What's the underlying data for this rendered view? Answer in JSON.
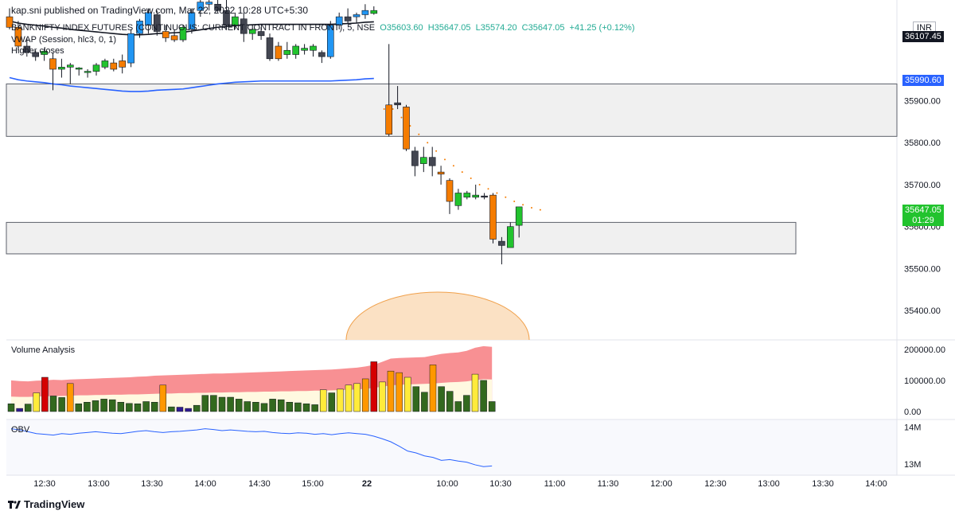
{
  "header": {
    "text": "kap.sni published on TradingView.com, Mar 22, 2022 10:28 UTC+5:30"
  },
  "legend": {
    "symbol": "BANKNIFTY INDEX FUTURES (CONTINUOUS: CURRENT CONTRACT IN FRONT), 5, NSE",
    "open": "O35603.60",
    "high": "H35647.05",
    "low": "L35574.20",
    "close": "C35647.05",
    "change": "+41.25 (+0.12%)",
    "vwap": "VWAP (Session, hlc3, 0, 1)",
    "indicator": "Higher closes"
  },
  "currency": "INR",
  "price_tags": {
    "upper": "36107.45",
    "vwap": "35990.60",
    "last": "35647.05",
    "countdown": "01:29"
  },
  "panes": {
    "volume_title": "Volume Analysis",
    "obv_title": "OBV"
  },
  "footer": {
    "brand": "TradingView"
  },
  "colors": {
    "up_candle": "#22c32e",
    "down_candle": "#f57c00",
    "strong_up": "#2196f3",
    "strong_down": "#434651",
    "vwap": "#2962ff",
    "zone_fill": "#f0f0f0",
    "zone_border": "#5d606b"
  },
  "chart_data": [
    {
      "type": "candlestick",
      "title": "",
      "y_axis_ticks": [
        35400,
        35500,
        35600,
        35700,
        35800,
        35900
      ],
      "ylim": [
        35330,
        36140
      ],
      "x_axis_ticks": [
        "12:30",
        "13:00",
        "13:30",
        "14:00",
        "14:30",
        "15:00",
        "22",
        "10:00",
        "10:30",
        "11:00",
        "11:30",
        "12:00",
        "12:30",
        "13:00",
        "13:30",
        "14:00"
      ],
      "session_break_after_candle": 42,
      "candles": [
        {
          "o": 36100,
          "h": 36120,
          "l": 36070,
          "c": 36075,
          "k": "down"
        },
        {
          "o": 36075,
          "h": 36090,
          "l": 36020,
          "c": 36030,
          "k": "down"
        },
        {
          "o": 36030,
          "h": 36050,
          "l": 36005,
          "c": 36015,
          "k": "dark"
        },
        {
          "o": 36015,
          "h": 36020,
          "l": 35995,
          "c": 36005,
          "k": "dark"
        },
        {
          "o": 36010,
          "h": 36025,
          "l": 35995,
          "c": 36018,
          "k": "up"
        },
        {
          "o": 36000,
          "h": 36015,
          "l": 35925,
          "c": 35975,
          "k": "down"
        },
        {
          "o": 35975,
          "h": 36000,
          "l": 35955,
          "c": 35980,
          "k": "up"
        },
        {
          "o": 35980,
          "h": 35990,
          "l": 35940,
          "c": 35985,
          "k": "up"
        },
        {
          "o": 35975,
          "h": 35980,
          "l": 35960,
          "c": 35978,
          "k": "up"
        },
        {
          "o": 35970,
          "h": 35975,
          "l": 35955,
          "c": 35968,
          "k": "up"
        },
        {
          "o": 35970,
          "h": 35990,
          "l": 35960,
          "c": 35985,
          "k": "up"
        },
        {
          "o": 35980,
          "h": 36000,
          "l": 35975,
          "c": 35995,
          "k": "up"
        },
        {
          "o": 35990,
          "h": 36000,
          "l": 35970,
          "c": 35975,
          "k": "down"
        },
        {
          "o": 35980,
          "h": 36010,
          "l": 35965,
          "c": 35995,
          "k": "down"
        },
        {
          "o": 35990,
          "h": 36070,
          "l": 35980,
          "c": 36060,
          "k": "blue"
        },
        {
          "o": 36060,
          "h": 36095,
          "l": 36050,
          "c": 36090,
          "k": "blue"
        },
        {
          "o": 36080,
          "h": 36120,
          "l": 36060,
          "c": 36110,
          "k": "blue"
        },
        {
          "o": 36105,
          "h": 36115,
          "l": 36055,
          "c": 36065,
          "k": "dark"
        },
        {
          "o": 36065,
          "h": 36080,
          "l": 36040,
          "c": 36050,
          "k": "down"
        },
        {
          "o": 36055,
          "h": 36070,
          "l": 36040,
          "c": 36045,
          "k": "down"
        },
        {
          "o": 36045,
          "h": 36080,
          "l": 36040,
          "c": 36075,
          "k": "up"
        },
        {
          "o": 36070,
          "h": 36120,
          "l": 36060,
          "c": 36110,
          "k": "blue"
        },
        {
          "o": 36115,
          "h": 36140,
          "l": 36100,
          "c": 36135,
          "k": "blue"
        },
        {
          "o": 36130,
          "h": 36145,
          "l": 36115,
          "c": 36135,
          "k": "blue"
        },
        {
          "o": 36130,
          "h": 36150,
          "l": 36110,
          "c": 36115,
          "k": "dark"
        },
        {
          "o": 36115,
          "h": 36140,
          "l": 36070,
          "c": 36080,
          "k": "dark"
        },
        {
          "o": 36080,
          "h": 36110,
          "l": 36070,
          "c": 36100,
          "k": "up"
        },
        {
          "o": 36095,
          "h": 36110,
          "l": 36040,
          "c": 36060,
          "k": "dark"
        },
        {
          "o": 36060,
          "h": 36080,
          "l": 36045,
          "c": 36070,
          "k": "up"
        },
        {
          "o": 36065,
          "h": 36075,
          "l": 36045,
          "c": 36055,
          "k": "dark"
        },
        {
          "o": 36050,
          "h": 36060,
          "l": 35995,
          "c": 36000,
          "k": "dark"
        },
        {
          "o": 36000,
          "h": 36040,
          "l": 35995,
          "c": 36030,
          "k": "down"
        },
        {
          "o": 36020,
          "h": 36040,
          "l": 36000,
          "c": 36010,
          "k": "up"
        },
        {
          "o": 36010,
          "h": 36035,
          "l": 36000,
          "c": 36030,
          "k": "up"
        },
        {
          "o": 36025,
          "h": 36035,
          "l": 36010,
          "c": 36020,
          "k": "up"
        },
        {
          "o": 36020,
          "h": 36035,
          "l": 36005,
          "c": 36030,
          "k": "up"
        },
        {
          "o": 36015,
          "h": 36020,
          "l": 35990,
          "c": 36005,
          "k": "dark"
        },
        {
          "o": 36005,
          "h": 36090,
          "l": 36000,
          "c": 36080,
          "k": "blue"
        },
        {
          "o": 36080,
          "h": 36110,
          "l": 36070,
          "c": 36100,
          "k": "blue"
        },
        {
          "o": 36100,
          "h": 36120,
          "l": 36085,
          "c": 36090,
          "k": "dark"
        },
        {
          "o": 36100,
          "h": 36110,
          "l": 36085,
          "c": 36105,
          "k": "blue"
        },
        {
          "o": 36105,
          "h": 36130,
          "l": 36095,
          "c": 36115,
          "k": "blue"
        },
        {
          "o": 36115,
          "h": 36125,
          "l": 36105,
          "c": 36108,
          "k": "up"
        },
        {
          "o": 35820,
          "h": 36035,
          "l": 35815,
          "c": 35890,
          "k": "down"
        },
        {
          "o": 35890,
          "h": 35935,
          "l": 35880,
          "c": 35895,
          "k": "dark"
        },
        {
          "o": 35885,
          "h": 35890,
          "l": 35780,
          "c": 35785,
          "k": "down"
        },
        {
          "o": 35780,
          "h": 35790,
          "l": 35720,
          "c": 35745,
          "k": "dark"
        },
        {
          "o": 35750,
          "h": 35790,
          "l": 35730,
          "c": 35765,
          "k": "up"
        },
        {
          "o": 35765,
          "h": 35790,
          "l": 35720,
          "c": 35745,
          "k": "dark"
        },
        {
          "o": 35730,
          "h": 35745,
          "l": 35700,
          "c": 35725,
          "k": "down"
        },
        {
          "o": 35710,
          "h": 35715,
          "l": 35630,
          "c": 35660,
          "k": "down"
        },
        {
          "o": 35650,
          "h": 35690,
          "l": 35640,
          "c": 35680,
          "k": "up"
        },
        {
          "o": 35670,
          "h": 35685,
          "l": 35665,
          "c": 35680,
          "k": "up"
        },
        {
          "o": 35675,
          "h": 35700,
          "l": 35665,
          "c": 35670,
          "k": "up"
        },
        {
          "o": 35670,
          "h": 35680,
          "l": 35665,
          "c": 35673,
          "k": "dark"
        },
        {
          "o": 35675,
          "h": 35680,
          "l": 35560,
          "c": 35570,
          "k": "down"
        },
        {
          "o": 35565,
          "h": 35575,
          "l": 35510,
          "c": 35555,
          "k": "dark"
        },
        {
          "o": 35550,
          "h": 35610,
          "l": 35550,
          "c": 35600,
          "k": "up"
        },
        {
          "o": 35603,
          "h": 35647,
          "l": 35574,
          "c": 35647,
          "k": "up"
        }
      ],
      "vwap": [
        36090,
        36085,
        36082,
        36080,
        36078,
        36075,
        36073,
        36070,
        36068,
        36066,
        36064,
        36062,
        36060,
        36058,
        36057,
        36057,
        36058,
        36060,
        36061,
        36062,
        36063,
        36066,
        36069,
        36072,
        36075,
        36077,
        36079,
        36080,
        36081,
        36082,
        36082,
        36082,
        36082,
        36082,
        36082,
        36082,
        36082,
        36082,
        36083,
        36084,
        36085,
        36087,
        36088
      ],
      "vwap_session2": [
        35880,
        35880,
        35860,
        35840,
        35820,
        35800,
        35780,
        35760,
        35745,
        35730,
        35715,
        35700,
        35690,
        35680,
        35670,
        35660,
        35652,
        35645,
        35640
      ],
      "zones": [
        {
          "top": 35940,
          "bottom": 35815
        },
        {
          "top": 35610,
          "bottom": 35535
        }
      ]
    },
    {
      "type": "bar",
      "title": "Volume Analysis",
      "y_axis_ticks": [
        "200000.00",
        "100000.00",
        "0.00"
      ],
      "ylim": [
        0,
        220000
      ],
      "values": [
        25000,
        10000,
        24000,
        60000,
        110000,
        50000,
        45000,
        90000,
        25000,
        30000,
        35000,
        40000,
        38000,
        30000,
        26000,
        25000,
        32000,
        30000,
        85000,
        15000,
        14000,
        10000,
        20000,
        52000,
        52000,
        46000,
        46000,
        40000,
        32000,
        30000,
        26000,
        40000,
        38000,
        30000,
        28000,
        25000,
        22000,
        70000,
        60000,
        72000,
        85000,
        90000,
        105000,
        160000,
        95000,
        130000,
        125000,
        110000,
        80000,
        62000,
        150000,
        80000,
        65000,
        32000,
        52000,
        120000,
        100000,
        32000
      ],
      "band_upper": [
        100000,
        98000,
        97000,
        99000,
        100000,
        102000,
        101000,
        103000,
        104000,
        105000,
        106000,
        107000,
        108000,
        109000,
        110000,
        112000,
        113000,
        115000,
        116000,
        117000,
        118000,
        119000,
        120000,
        121000,
        122000,
        122000,
        123000,
        124000,
        125000,
        126000,
        127000,
        128000,
        129000,
        130000,
        131000,
        132000,
        133000,
        134000,
        135000,
        137000,
        139000,
        141000,
        145000,
        150000,
        160000,
        170000,
        172000,
        173000,
        174000,
        175000,
        180000,
        185000,
        188000,
        190000,
        195000,
        205000,
        210000,
        208000
      ],
      "band_mid": [
        48000,
        47000,
        47000,
        48000,
        49000,
        50000,
        50000,
        51000,
        52000,
        52000,
        53000,
        53000,
        54000,
        54000,
        55000,
        55000,
        56000,
        57000,
        58000,
        58000,
        59000,
        59000,
        60000,
        60000,
        61000,
        61000,
        62000,
        62000,
        63000,
        63000,
        64000,
        64000,
        65000,
        65000,
        66000,
        66000,
        67000,
        67000,
        68000,
        69000,
        70000,
        71000,
        73000,
        76000,
        80000,
        84000,
        86000,
        87000,
        88000,
        89000,
        90000,
        92000,
        94000,
        95000,
        97000,
        101000,
        104000,
        103000
      ]
    },
    {
      "type": "line",
      "title": "OBV",
      "y_axis_ticks": [
        "14M",
        "13M"
      ],
      "ylim": [
        12.7,
        14.2
      ],
      "values": [
        13.95,
        13.92,
        13.87,
        13.82,
        13.8,
        13.78,
        13.82,
        13.8,
        13.83,
        13.85,
        13.87,
        13.85,
        13.83,
        13.82,
        13.85,
        13.88,
        13.9,
        13.87,
        13.85,
        13.87,
        13.88,
        13.9,
        13.92,
        13.95,
        13.93,
        13.9,
        13.92,
        13.9,
        13.88,
        13.87,
        13.88,
        13.85,
        13.83,
        13.82,
        13.84,
        13.83,
        13.8,
        13.82,
        13.79,
        13.82,
        13.84,
        13.82,
        13.8,
        13.75,
        13.68,
        13.6,
        13.48,
        13.35,
        13.3,
        13.22,
        13.18,
        13.1,
        13.12,
        13.08,
        13.05,
        12.98,
        12.93,
        12.95
      ]
    }
  ]
}
